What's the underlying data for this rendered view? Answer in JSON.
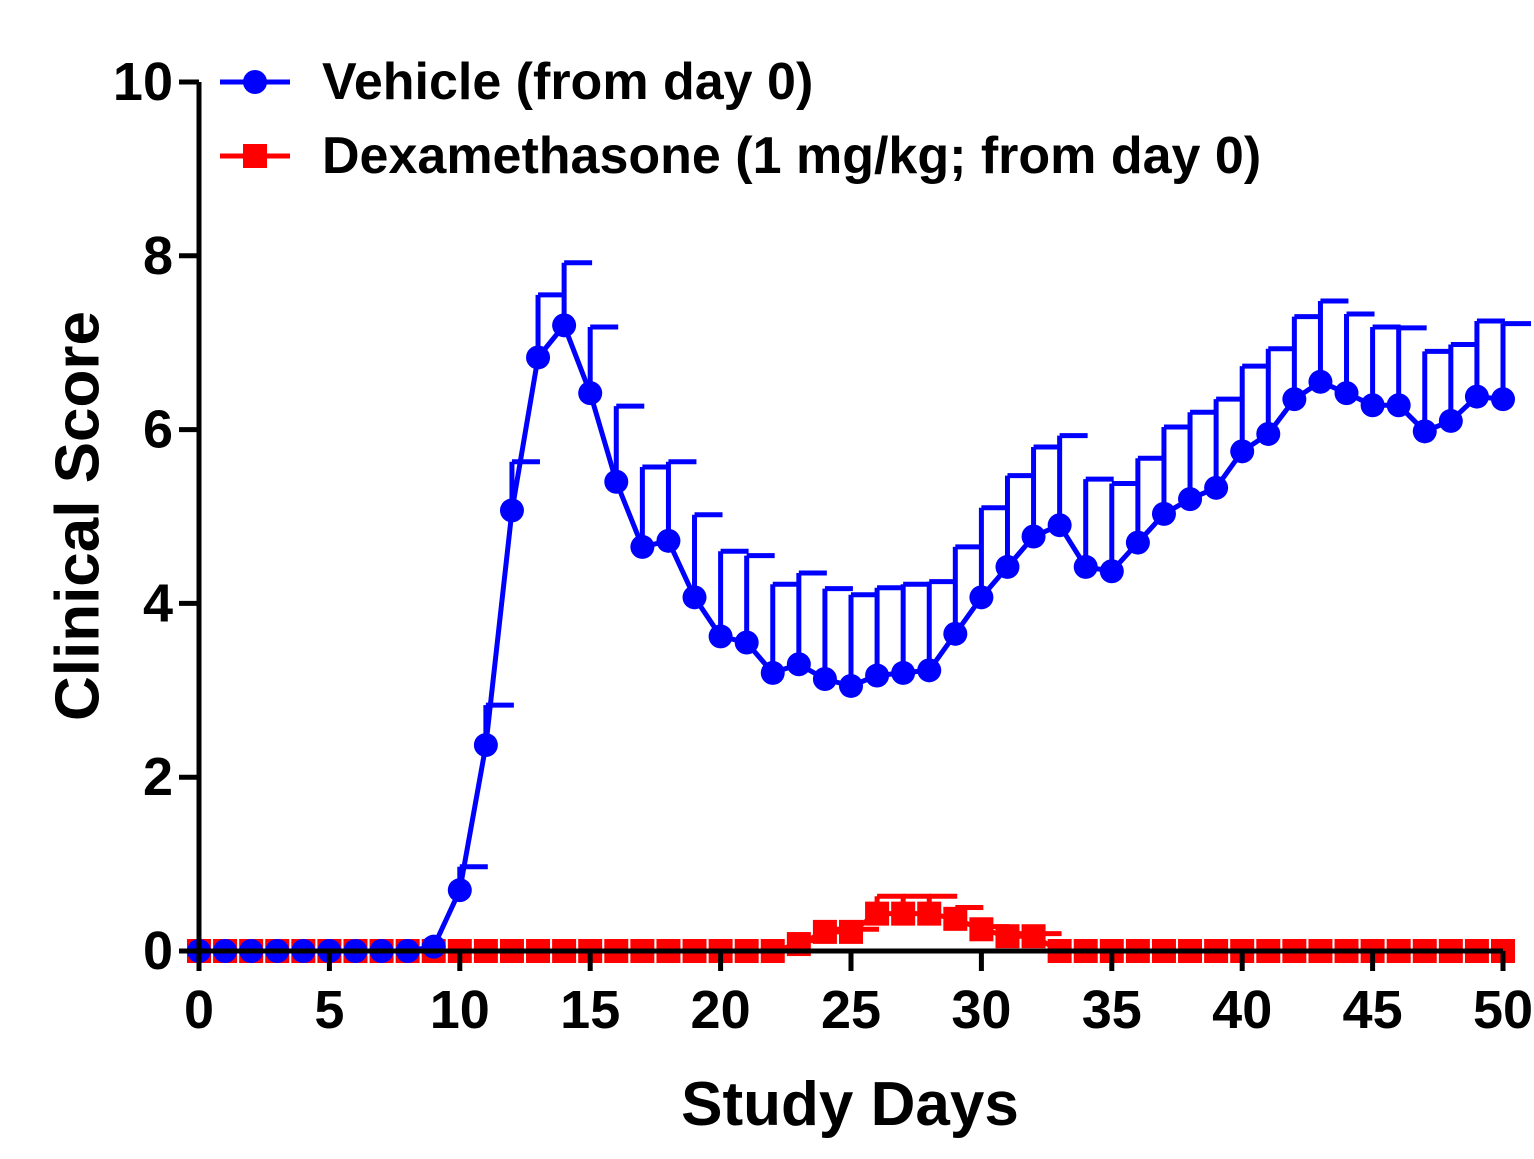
{
  "chart_data": {
    "type": "line",
    "xlabel": "Study Days",
    "ylabel": "Clinical Score",
    "xlim": [
      0,
      50
    ],
    "ylim": [
      0,
      10
    ],
    "x_ticks": [
      0,
      5,
      10,
      15,
      20,
      25,
      30,
      35,
      40,
      45,
      50
    ],
    "y_ticks": [
      0,
      2,
      4,
      6,
      8,
      10
    ],
    "grid": false,
    "legend_position": "top-left",
    "error_bars": "upper only",
    "series": [
      {
        "name": "Vehicle (from day 0)",
        "color": "#0000ff",
        "marker": "circle",
        "x": [
          0,
          1,
          2,
          3,
          4,
          5,
          6,
          7,
          8,
          9,
          10,
          11,
          12,
          13,
          14,
          15,
          16,
          17,
          18,
          19,
          20,
          21,
          22,
          23,
          24,
          25,
          26,
          27,
          28,
          29,
          30,
          31,
          32,
          33,
          34,
          35,
          36,
          37,
          38,
          39,
          40,
          41,
          42,
          43,
          44,
          45,
          46,
          47,
          48,
          49,
          50
        ],
        "values": [
          0,
          0,
          0,
          0,
          0,
          0,
          0,
          0,
          0,
          0.05,
          0.7,
          2.37,
          5.07,
          6.83,
          7.2,
          6.42,
          5.4,
          4.65,
          4.72,
          4.07,
          3.62,
          3.55,
          3.2,
          3.3,
          3.13,
          3.05,
          3.17,
          3.2,
          3.23,
          3.65,
          4.07,
          4.42,
          4.77,
          4.9,
          4.42,
          4.37,
          4.7,
          5.03,
          5.2,
          5.33,
          5.75,
          5.95,
          6.35,
          6.55,
          6.42,
          6.28,
          6.28,
          5.98,
          6.1,
          6.38,
          6.35
        ],
        "error_upper": [
          0,
          0,
          0,
          0,
          0,
          0,
          0,
          0,
          0,
          0,
          0.97,
          2.83,
          5.63,
          7.55,
          7.92,
          7.18,
          6.27,
          5.57,
          5.63,
          5.02,
          4.6,
          4.55,
          4.22,
          4.35,
          4.17,
          4.1,
          4.18,
          4.22,
          4.25,
          4.65,
          5.1,
          5.47,
          5.8,
          5.93,
          5.43,
          5.38,
          5.67,
          6.03,
          6.2,
          6.35,
          6.73,
          6.93,
          7.3,
          7.48,
          7.33,
          7.18,
          7.17,
          6.9,
          6.98,
          7.25,
          7.22
        ]
      },
      {
        "name": "Dexamethasone (1 mg/kg; from day 0)",
        "color": "#ff0000",
        "marker": "square",
        "x": [
          0,
          1,
          2,
          3,
          4,
          5,
          6,
          7,
          8,
          9,
          10,
          11,
          12,
          13,
          14,
          15,
          16,
          17,
          18,
          19,
          20,
          21,
          22,
          23,
          24,
          25,
          26,
          27,
          28,
          29,
          30,
          31,
          32,
          33,
          34,
          35,
          36,
          37,
          38,
          39,
          40,
          41,
          42,
          43,
          44,
          45,
          46,
          47,
          48,
          49,
          50
        ],
        "values": [
          0,
          0,
          0,
          0,
          0,
          0,
          0,
          0,
          0,
          0,
          0,
          0,
          0,
          0,
          0,
          0,
          0,
          0,
          0,
          0,
          0,
          0,
          0,
          0.08,
          0.22,
          0.22,
          0.43,
          0.43,
          0.43,
          0.37,
          0.25,
          0.17,
          0.17,
          0,
          0,
          0,
          0,
          0,
          0,
          0,
          0,
          0,
          0,
          0,
          0,
          0,
          0,
          0,
          0,
          0,
          0
        ],
        "error_upper": [
          0,
          0,
          0,
          0,
          0,
          0,
          0,
          0,
          0,
          0,
          0,
          0,
          0,
          0,
          0,
          0,
          0,
          0,
          0,
          0,
          0,
          0,
          0,
          0.12,
          0.25,
          0.25,
          0.63,
          0.63,
          0.63,
          0.5,
          0.28,
          0.2,
          0.2,
          0,
          0,
          0,
          0,
          0,
          0,
          0,
          0,
          0,
          0,
          0,
          0,
          0,
          0,
          0,
          0,
          0,
          0
        ]
      }
    ]
  }
}
